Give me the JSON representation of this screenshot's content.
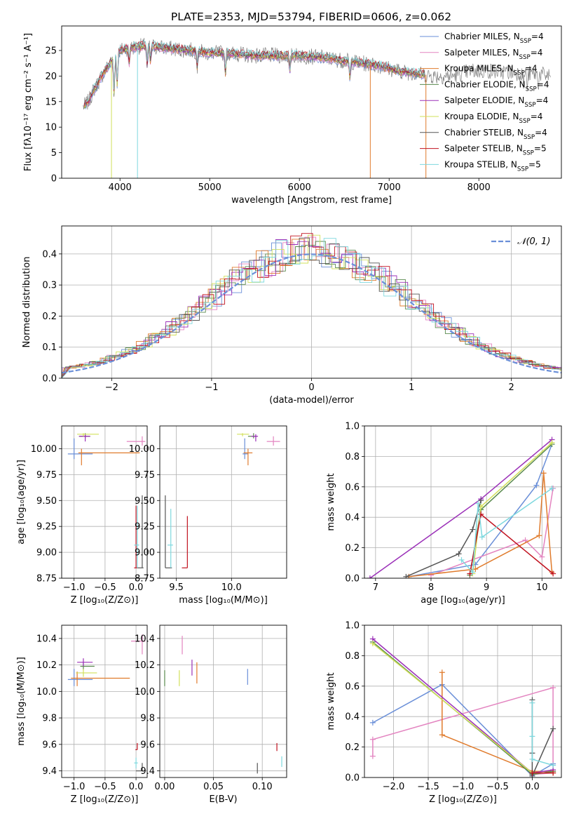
{
  "figure_title": "PLATE=2353, MJD=53794, FIBERID=0606, z=0.062",
  "series_colors": [
    "#6a8fd8",
    "#e384c0",
    "#e07b2c",
    "#5a8a4e",
    "#9b30b8",
    "#d2e05a",
    "#555555",
    "#c1121f",
    "#7ed8de"
  ],
  "chart_data": [
    {
      "id": "spectrum",
      "type": "line",
      "title": "PLATE=2353, MJD=53794, FIBERID=0606, z=0.062",
      "xlabel": "wavelength [Angstrom, rest frame]",
      "ylabel": "Flux [fλ10⁻¹⁷ erg cm⁻² s⁻¹ A⁻¹]",
      "xlim": [
        3350,
        8920
      ],
      "ylim": [
        0,
        29.8
      ],
      "xticks": [
        4000,
        5000,
        6000,
        7000,
        8000
      ],
      "yticks": [
        0,
        5,
        10,
        15,
        20,
        25
      ],
      "grid": false,
      "legend_position": "top-right",
      "legend": [
        {
          "base": "Chabrier MILES, N",
          "sub": "SSP",
          "tail": "=4"
        },
        {
          "base": "Salpeter MILES, N",
          "sub": "SSP",
          "tail": "=4"
        },
        {
          "base": "Kroupa MILES, N",
          "sub": "SSP",
          "tail": "=4"
        },
        {
          "base": "Chabrier ELODIE, N",
          "sub": "SSP",
          "tail": "=4"
        },
        {
          "base": "Salpeter ELODIE, N",
          "sub": "SSP",
          "tail": "=4"
        },
        {
          "base": "Kroupa ELODIE, N",
          "sub": "SSP",
          "tail": "=4"
        },
        {
          "base": "Chabrier STELIB, N",
          "sub": "SSP",
          "tail": "=4"
        },
        {
          "base": "Salpeter STELIB, N",
          "sub": "SSP",
          "tail": "=5"
        },
        {
          "base": "Kroupa STELIB, N",
          "sub": "SSP",
          "tail": "=5"
        }
      ],
      "continuum_points": [
        [
          3590,
          14.0
        ],
        [
          3650,
          15.0
        ],
        [
          3700,
          17.0
        ],
        [
          3780,
          19.5
        ],
        [
          3850,
          21.5
        ],
        [
          3950,
          24.0
        ],
        [
          4000,
          25.0
        ],
        [
          4100,
          25.5
        ],
        [
          4300,
          26.0
        ],
        [
          4500,
          25.5
        ],
        [
          4800,
          25.0
        ],
        [
          5000,
          24.5
        ],
        [
          5200,
          24.5
        ],
        [
          5500,
          24.0
        ],
        [
          6000,
          24.0
        ],
        [
          6300,
          23.5
        ],
        [
          6500,
          23.0
        ],
        [
          6700,
          22.5
        ],
        [
          6900,
          22.0
        ],
        [
          7100,
          21.0
        ],
        [
          7300,
          20.5
        ],
        [
          7500,
          20.0
        ],
        [
          7700,
          20.0
        ],
        [
          7900,
          21.0
        ],
        [
          8100,
          21.0
        ],
        [
          8300,
          20.8
        ],
        [
          8550,
          20.5
        ],
        [
          8700,
          20.3
        ],
        [
          8800,
          20.0
        ]
      ],
      "absorption_lines": [
        [
          3934,
          7
        ],
        [
          3969,
          6
        ],
        [
          4102,
          3
        ],
        [
          4304,
          4
        ],
        [
          4340,
          3
        ],
        [
          4861,
          3
        ],
        [
          5175,
          4
        ],
        [
          5893,
          3
        ],
        [
          6563,
          3
        ],
        [
          8498,
          2
        ],
        [
          8542,
          3
        ],
        [
          8662,
          2
        ]
      ],
      "model_wavelength_range": [
        3600,
        7400
      ]
    },
    {
      "id": "residuals",
      "type": "step",
      "xlabel": "(data-model)/error",
      "ylabel": "Normed distribution",
      "xlim": [
        -2.5,
        2.5
      ],
      "ylim": [
        0,
        0.49
      ],
      "xticks": [
        -2,
        -1,
        0,
        1,
        2
      ],
      "yticks": [
        0,
        0.1,
        0.2,
        0.3,
        0.4
      ],
      "grid": true,
      "legend_position": "top-right",
      "legend": [
        "𝒩(0, 1)"
      ],
      "reference_curve": "normal(0,1)"
    },
    {
      "id": "age_vs_Z",
      "type": "errorbar",
      "xlabel": "Z [log₁₀(Z/Z⊙)]",
      "ylabel": "age  [log₁₀(age/yr)]",
      "xlim": [
        -1.2,
        0.18
      ],
      "ylim": [
        8.75,
        10.22
      ],
      "xticks": [
        -1.0,
        -0.5,
        0.0
      ],
      "yticks": [
        8.75,
        9.0,
        9.25,
        9.5,
        9.75,
        10.0
      ],
      "grid": true,
      "points": [
        {
          "x": -1.0,
          "xerr": [
            0.1,
            0.3
          ],
          "y": 9.95,
          "yerr": [
            0.05,
            0.15
          ]
        },
        {
          "x": 0.1,
          "xerr": [
            0.25,
            0.05
          ],
          "y": 10.07,
          "yerr": [
            0.04,
            0.05
          ]
        },
        {
          "x": -0.88,
          "xerr": [
            0.05,
            0.94
          ],
          "y": 9.96,
          "yerr": [
            0.12,
            0.04
          ]
        },
        {
          "x": -0.82,
          "xerr": [
            0.1,
            0.08
          ],
          "y": 10.12,
          "yerr": [
            0.02,
            0.03
          ]
        },
        {
          "x": -0.82,
          "xerr": [
            0.1,
            0.08
          ],
          "y": 10.12,
          "yerr": [
            0.05,
            0.02
          ]
        },
        {
          "x": -0.85,
          "xerr": [
            0.1,
            0.25
          ],
          "y": 10.14,
          "yerr": [
            0.02,
            0.01
          ]
        },
        {
          "x": 0.1,
          "xerr": [
            0.08,
            0.02
          ],
          "y": 8.85,
          "yerr": [
            0.0,
            0.7
          ]
        },
        {
          "x": 0.0,
          "xerr": [
            0.03,
            0.02
          ],
          "y": 8.85,
          "yerr": [
            0.0,
            0.6
          ]
        },
        {
          "x": 0.02,
          "xerr": [
            0.05,
            0.03
          ],
          "y": 9.07,
          "yerr": [
            0.22,
            0.38
          ]
        }
      ]
    },
    {
      "id": "age_vs_mass",
      "type": "errorbar",
      "xlabel": "mass [log₁₀(M/M⊙)]",
      "ylabel": "",
      "xlim": [
        9.35,
        10.5
      ],
      "ylim": [
        8.75,
        10.22
      ],
      "xticks": [
        9.5,
        10.0
      ],
      "yticks": [
        8.75,
        9.0,
        9.25,
        9.5,
        9.75,
        10.0
      ],
      "grid": true,
      "points": [
        {
          "x": 10.12,
          "xerr": [
            0.02,
            0.03
          ],
          "y": 9.95,
          "yerr": [
            0.05,
            0.15
          ]
        },
        {
          "x": 10.38,
          "xerr": [
            0.06,
            0.06
          ],
          "y": 10.07,
          "yerr": [
            0.04,
            0.05
          ]
        },
        {
          "x": 10.15,
          "xerr": [
            0.04,
            0.04
          ],
          "y": 9.96,
          "yerr": [
            0.12,
            0.04
          ]
        },
        {
          "x": 10.2,
          "xerr": [
            0.05,
            0.03
          ],
          "y": 10.12,
          "yerr": [
            0.02,
            0.03
          ]
        },
        {
          "x": 10.22,
          "xerr": [
            0.04,
            0.02
          ],
          "y": 10.12,
          "yerr": [
            0.05,
            0.02
          ]
        },
        {
          "x": 10.1,
          "xerr": [
            0.05,
            0.06
          ],
          "y": 10.14,
          "yerr": [
            0.02,
            0.01
          ]
        },
        {
          "x": 9.4,
          "xerr": [
            0.0,
            0.06
          ],
          "y": 8.85,
          "yerr": [
            0.0,
            0.7
          ]
        },
        {
          "x": 9.6,
          "xerr": [
            0.05,
            0.0
          ],
          "y": 8.85,
          "yerr": [
            0.0,
            0.5
          ]
        },
        {
          "x": 9.45,
          "xerr": [
            0.03,
            0.02
          ],
          "y": 9.07,
          "yerr": [
            0.22,
            0.35
          ]
        }
      ]
    },
    {
      "id": "massweight_vs_age",
      "type": "line",
      "xlabel": "age  [log₁₀(age/yr)]",
      "ylabel": "mass weight",
      "xlim": [
        6.8,
        10.35
      ],
      "ylim": [
        0,
        1.0
      ],
      "xticks": [
        7,
        8,
        9,
        10
      ],
      "yticks": [
        0.0,
        0.2,
        0.4,
        0.6,
        0.8,
        1.0
      ],
      "grid": true,
      "series": [
        {
          "x": [
            7.6,
            8.8,
            9.9,
            10.18
          ],
          "y": [
            0.01,
            0.09,
            0.61,
            0.88
          ]
        },
        {
          "x": [
            8.0,
            9.7,
            10.0,
            10.2
          ],
          "y": [
            0.02,
            0.25,
            0.14,
            0.59
          ]
        },
        {
          "x": [
            7.6,
            8.8,
            9.95,
            10.03,
            10.18
          ],
          "y": [
            0.01,
            0.06,
            0.28,
            0.69,
            0.04
          ]
        },
        {
          "x": [
            8.7,
            8.9,
            10.18
          ],
          "y": [
            0.02,
            0.45,
            0.88
          ]
        },
        {
          "x": [
            6.9,
            8.9,
            10.18
          ],
          "y": [
            0.0,
            0.52,
            0.91
          ]
        },
        {
          "x": [
            8.75,
            8.9,
            10.18
          ],
          "y": [
            0.03,
            0.47,
            0.89
          ]
        },
        {
          "x": [
            7.55,
            8.5,
            8.75,
            8.9
          ],
          "y": [
            0.01,
            0.16,
            0.32,
            0.51
          ]
        },
        {
          "x": [
            8.7,
            8.9,
            10.2
          ],
          "y": [
            0.03,
            0.42,
            0.03
          ]
        },
        {
          "x": [
            8.55,
            8.75,
            8.85,
            8.92,
            10.18
          ],
          "y": [
            0.12,
            0.04,
            0.49,
            0.27,
            0.59
          ]
        }
      ]
    },
    {
      "id": "mass_vs_Z",
      "type": "errorbar",
      "xlabel": "Z [log₁₀(Z/Z⊙)]",
      "ylabel": "mass [log₁₀(M/M⊙)]",
      "xlim": [
        -1.2,
        0.18
      ],
      "ylim": [
        9.35,
        10.5
      ],
      "xticks": [
        -1.0,
        -0.5,
        0.0
      ],
      "yticks": [
        9.4,
        9.6,
        9.8,
        10.0,
        10.2,
        10.4
      ],
      "grid": true,
      "points": [
        {
          "x": -1.0,
          "xerr": [
            0.1,
            0.3
          ],
          "y": 10.09,
          "yerr": [
            0.05,
            0.08
          ]
        },
        {
          "x": 0.1,
          "xerr": [
            0.18,
            0.05
          ],
          "y": 10.38,
          "yerr": [
            0.1,
            0.05
          ]
        },
        {
          "x": -0.95,
          "xerr": [
            0.1,
            0.85
          ],
          "y": 10.1,
          "yerr": [
            0.06,
            0.05
          ]
        },
        {
          "x": -0.85,
          "xerr": [
            0.05,
            0.18
          ],
          "y": 10.19,
          "yerr": [
            0.03,
            0.03
          ]
        },
        {
          "x": -0.85,
          "xerr": [
            0.1,
            0.15
          ],
          "y": 10.22,
          "yerr": [
            0.03,
            0.03
          ]
        },
        {
          "x": -0.85,
          "xerr": [
            0.12,
            0.22
          ],
          "y": 10.14,
          "yerr": [
            0.03,
            0.03
          ]
        },
        {
          "x": 0.1,
          "xerr": [
            0.1,
            0.0
          ],
          "y": 9.4,
          "yerr": [
            0.0,
            0.06
          ]
        },
        {
          "x": 0.02,
          "xerr": [
            0.03,
            0.0
          ],
          "y": 9.56,
          "yerr": [
            0.0,
            0.05
          ]
        },
        {
          "x": 0.0,
          "xerr": [
            0.03,
            0.03
          ],
          "y": 9.46,
          "yerr": [
            0.04,
            0.04
          ]
        }
      ]
    },
    {
      "id": "mass_vs_ebv",
      "type": "errorbar",
      "xlabel": "E(B-V)",
      "ylabel": "",
      "xlim": [
        -0.005,
        0.125
      ],
      "ylim": [
        9.35,
        10.5
      ],
      "xticks": [
        0.0,
        0.05,
        0.1
      ],
      "yticks": [
        9.4,
        9.6,
        9.8,
        10.0,
        10.2,
        10.4
      ],
      "grid": true,
      "points": [
        {
          "x": 0.085,
          "xerr": [
            0,
            0
          ],
          "y": 10.11,
          "yerr": [
            0.06,
            0.06
          ]
        },
        {
          "x": 0.018,
          "xerr": [
            0,
            0
          ],
          "y": 10.35,
          "yerr": [
            0.07,
            0.07
          ]
        },
        {
          "x": 0.033,
          "xerr": [
            0,
            0
          ],
          "y": 10.14,
          "yerr": [
            0.08,
            0.08
          ]
        },
        {
          "x": 0.0,
          "xerr": [
            0,
            0
          ],
          "y": 10.1,
          "yerr": [
            0.06,
            0.06
          ]
        },
        {
          "x": 0.028,
          "xerr": [
            0,
            0
          ],
          "y": 10.18,
          "yerr": [
            0.06,
            0.06
          ]
        },
        {
          "x": 0.015,
          "xerr": [
            0,
            0
          ],
          "y": 10.1,
          "yerr": [
            0.06,
            0.06
          ]
        },
        {
          "x": 0.095,
          "xerr": [
            0,
            0
          ],
          "y": 9.42,
          "yerr": [
            0.04,
            0.04
          ]
        },
        {
          "x": 0.115,
          "xerr": [
            0,
            0
          ],
          "y": 9.58,
          "yerr": [
            0.03,
            0.03
          ]
        },
        {
          "x": 0.12,
          "xerr": [
            0,
            0
          ],
          "y": 9.47,
          "yerr": [
            0.04,
            0.04
          ]
        }
      ]
    },
    {
      "id": "massweight_vs_Z",
      "type": "line",
      "xlabel": "Z [log₁₀(Z/Z⊙)]",
      "ylabel": "mass weight",
      "xlim": [
        -2.42,
        0.42
      ],
      "ylim": [
        0,
        1.0
      ],
      "xticks": [
        -2.0,
        -1.5,
        -1.0,
        -0.5,
        0.0
      ],
      "yticks": [
        0.0,
        0.2,
        0.4,
        0.6,
        0.8,
        1.0
      ],
      "grid": true,
      "series": [
        {
          "x": [
            -2.3,
            -1.3,
            0.0,
            0.3
          ],
          "y": [
            0.36,
            0.61,
            0.01,
            0.09
          ]
        },
        {
          "x": [
            -2.3,
            -2.3,
            0.3,
            0.3,
            0.0
          ],
          "y": [
            0.14,
            0.25,
            0.59,
            0.03,
            0.02
          ]
        },
        {
          "x": [
            -1.3,
            -1.3,
            0.0,
            0.3
          ],
          "y": [
            0.69,
            0.28,
            0.04,
            0.04
          ]
        },
        {
          "x": [
            -2.3,
            0.0,
            0.3
          ],
          "y": [
            0.89,
            0.02,
            0.04
          ]
        },
        {
          "x": [
            -2.3,
            0.0,
            0.3
          ],
          "y": [
            0.91,
            0.03,
            0.05
          ]
        },
        {
          "x": [
            -2.3,
            0.0,
            0.3
          ],
          "y": [
            0.88,
            0.03,
            0.03
          ]
        },
        {
          "x": [
            0.0,
            0.0,
            0.0,
            0.3
          ],
          "y": [
            0.51,
            0.16,
            0.01,
            0.32
          ]
        },
        {
          "x": [
            0.0,
            0.3
          ],
          "y": [
            0.03,
            0.03
          ]
        },
        {
          "x": [
            0.0,
            0.0,
            0.0,
            0.3
          ],
          "y": [
            0.49,
            0.27,
            0.12,
            0.08
          ]
        }
      ]
    }
  ]
}
